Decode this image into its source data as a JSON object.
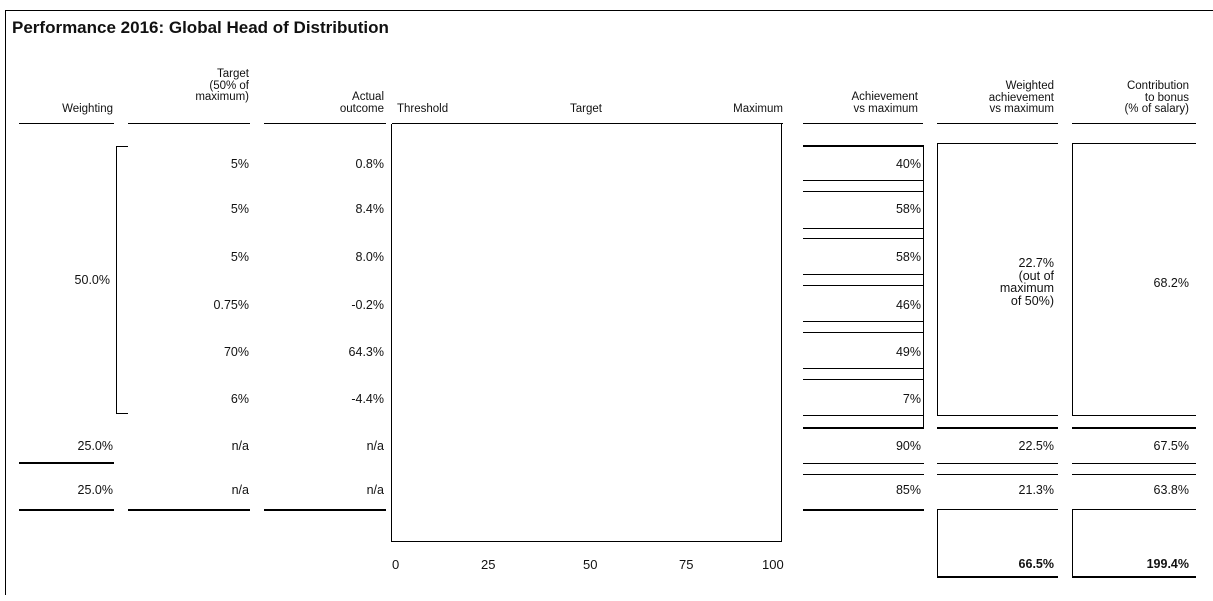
{
  "title": "Performance 2016: Global Head of Distribution",
  "headers": {
    "weighting": "Weighting",
    "target": "Target\n(50% of\nmaximum)",
    "actual": "Actual\noutcome",
    "threshold": "Threshold",
    "target_mid": "Target",
    "maximum": "Maximum",
    "achievement": "Achievement\nvs maximum",
    "weighted": "Weighted\nachievement\nvs maximum",
    "contribution": "Contribution\nto bonus\n(% of salary)"
  },
  "group_weighting": "50.0%",
  "group_weighted": "22.7%\n(out of\nmaximum\nof 50%)",
  "group_contribution": "68.2%",
  "rows": [
    {
      "target": "5%",
      "actual": "0.8%",
      "achievement": "40%"
    },
    {
      "target": "5%",
      "actual": "8.4%",
      "achievement": "58%"
    },
    {
      "target": "5%",
      "actual": "8.0%",
      "achievement": "58%"
    },
    {
      "target": "0.75%",
      "actual": "-0.2%",
      "achievement": "46%"
    },
    {
      "target": "70%",
      "actual": "64.3%",
      "achievement": "49%"
    },
    {
      "target": "6%",
      "actual": "-4.4%",
      "achievement": "7%"
    },
    {
      "weighting": "25.0%",
      "target": "n/a",
      "actual": "n/a",
      "achievement": "90%",
      "weighted": "22.5%",
      "contribution": "67.5%"
    },
    {
      "weighting": "25.0%",
      "target": "n/a",
      "actual": "n/a",
      "achievement": "85%",
      "weighted": "21.3%",
      "contribution": "63.8%"
    }
  ],
  "axis_ticks": [
    "0",
    "25",
    "50",
    "75",
    "100"
  ],
  "totals": {
    "weighted": "66.5%",
    "contribution": "199.4%"
  }
}
